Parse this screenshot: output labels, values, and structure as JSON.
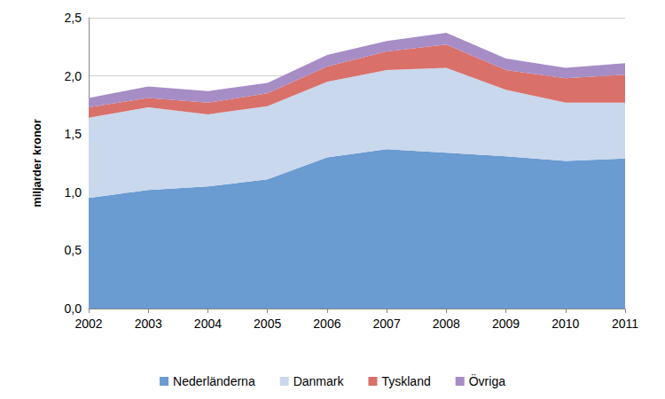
{
  "chart_data": {
    "type": "area",
    "stacked": true,
    "grid": true,
    "legend": "bottom",
    "y_label": "miljarder kronor",
    "categories": [
      "2002",
      "2003",
      "2004",
      "2005",
      "2006",
      "2007",
      "2008",
      "2009",
      "2010",
      "2011"
    ],
    "ylim": [
      0,
      2.5
    ],
    "yticks": [
      {
        "value": 0,
        "label": "0,0"
      },
      {
        "value": 0.5,
        "label": "0,5"
      },
      {
        "value": 1,
        "label": "1,0"
      },
      {
        "value": 1.5,
        "label": "1,5"
      },
      {
        "value": 2,
        "label": "2,0"
      },
      {
        "value": 2.5,
        "label": "2,5"
      }
    ],
    "series": [
      {
        "name": "Nederländerna",
        "color": "#6a9bd1",
        "values": [
          0.95,
          1.02,
          1.05,
          1.11,
          1.3,
          1.37,
          1.34,
          1.31,
          1.27,
          1.29
        ]
      },
      {
        "name": "Danmark",
        "color": "#c9d8ec",
        "values": [
          0.69,
          0.71,
          0.62,
          0.63,
          0.65,
          0.68,
          0.73,
          0.57,
          0.5,
          0.48
        ]
      },
      {
        "name": "Tyskland",
        "color": "#d9706a",
        "values": [
          0.09,
          0.08,
          0.1,
          0.11,
          0.13,
          0.16,
          0.2,
          0.17,
          0.21,
          0.24
        ]
      },
      {
        "name": "Övriga",
        "color": "#a68dc6",
        "values": [
          0.08,
          0.1,
          0.1,
          0.09,
          0.1,
          0.09,
          0.1,
          0.1,
          0.09,
          0.1
        ]
      }
    ]
  }
}
